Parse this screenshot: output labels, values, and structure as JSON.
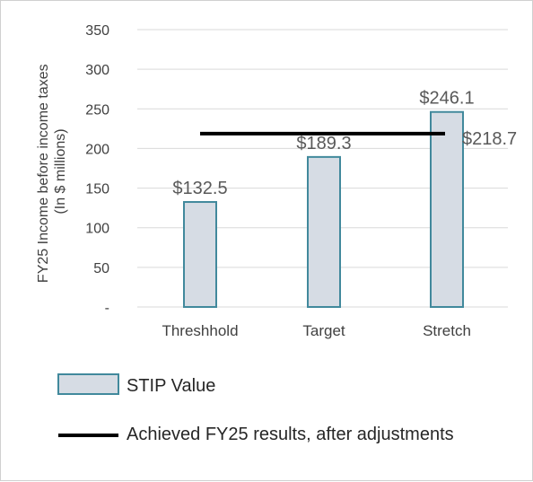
{
  "chart_data": {
    "type": "bar",
    "categories": [
      "Threshhold",
      "Target",
      "Stretch"
    ],
    "series": [
      {
        "name": "STIP Value",
        "values": [
          132.5,
          189.3,
          246.1
        ],
        "data_labels": [
          "$132.5",
          "$189.3",
          "$246.1"
        ]
      }
    ],
    "reference_line": {
      "name": "Achieved FY25 results, after adjustments",
      "value": 218.7,
      "label": "$218.7"
    },
    "ylabel": [
      "FY25 Income before income taxes",
      "(In $ millions)"
    ],
    "ylim": [
      0,
      350
    ],
    "yticks": [
      0,
      50,
      100,
      150,
      200,
      250,
      300,
      350
    ],
    "ytick_labels": [
      "-",
      "50",
      "100",
      "150",
      "200",
      "250",
      "300",
      "350"
    ],
    "grid": true,
    "legend_position": "bottom",
    "colors": {
      "bar_fill": "#d6dce4",
      "bar_stroke": "#41899c",
      "line": "#000000",
      "grid": "#d9d9d9"
    }
  }
}
